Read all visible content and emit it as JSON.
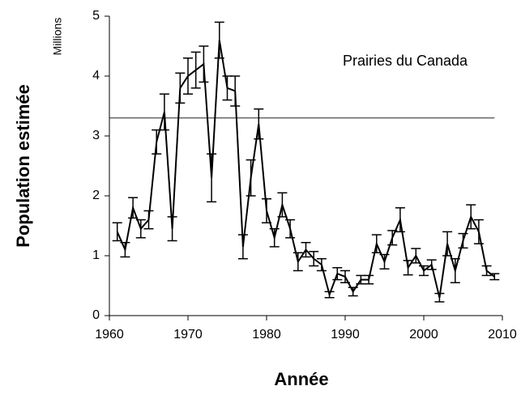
{
  "chart_data": {
    "type": "line",
    "annotation": "Prairies du Canada",
    "ylabel": "Population estimée",
    "yunit": "Millions",
    "xlabel": "Année",
    "x": [
      1961,
      1962,
      1963,
      1964,
      1965,
      1966,
      1967,
      1968,
      1969,
      1970,
      1971,
      1972,
      1973,
      1974,
      1975,
      1976,
      1977,
      1978,
      1979,
      1980,
      1981,
      1982,
      1983,
      1984,
      1985,
      1986,
      1987,
      1988,
      1989,
      1990,
      1991,
      1992,
      1993,
      1994,
      1995,
      1996,
      1997,
      1998,
      1999,
      2000,
      2001,
      2002,
      2003,
      2004,
      2005,
      2006,
      2007,
      2008,
      2009
    ],
    "series": [
      {
        "color": "#000000",
        "values": [
          1.4,
          1.1,
          1.8,
          1.45,
          1.6,
          2.9,
          3.4,
          1.45,
          3.8,
          4.0,
          4.1,
          4.2,
          2.3,
          4.6,
          3.8,
          3.75,
          1.15,
          2.3,
          3.2,
          1.75,
          1.3,
          1.85,
          1.45,
          0.9,
          1.1,
          0.95,
          0.85,
          0.35,
          0.7,
          0.65,
          0.4,
          0.6,
          0.6,
          1.2,
          0.9,
          1.3,
          1.6,
          0.8,
          1.0,
          0.75,
          0.85,
          0.3,
          1.2,
          0.75,
          1.25,
          1.65,
          1.4,
          0.75,
          0.65
        ],
        "errors": [
          0.15,
          0.12,
          0.17,
          0.15,
          0.15,
          0.2,
          0.3,
          0.2,
          0.25,
          0.3,
          0.3,
          0.3,
          0.4,
          0.3,
          0.2,
          0.25,
          0.2,
          0.3,
          0.25,
          0.2,
          0.15,
          0.2,
          0.15,
          0.15,
          0.12,
          0.12,
          0.1,
          0.05,
          0.1,
          0.1,
          0.07,
          0.07,
          0.07,
          0.15,
          0.12,
          0.12,
          0.2,
          0.12,
          0.12,
          0.08,
          0.08,
          0.07,
          0.2,
          0.2,
          0.12,
          0.2,
          0.2,
          0.08,
          0.05
        ]
      }
    ],
    "reference_line": 3.3,
    "xlim": [
      1960,
      2010
    ],
    "xticks": [
      1960,
      1970,
      1980,
      1990,
      2000,
      2010
    ],
    "ylim": [
      0,
      5
    ],
    "yticks": [
      0,
      1,
      2,
      3,
      4,
      5
    ]
  }
}
